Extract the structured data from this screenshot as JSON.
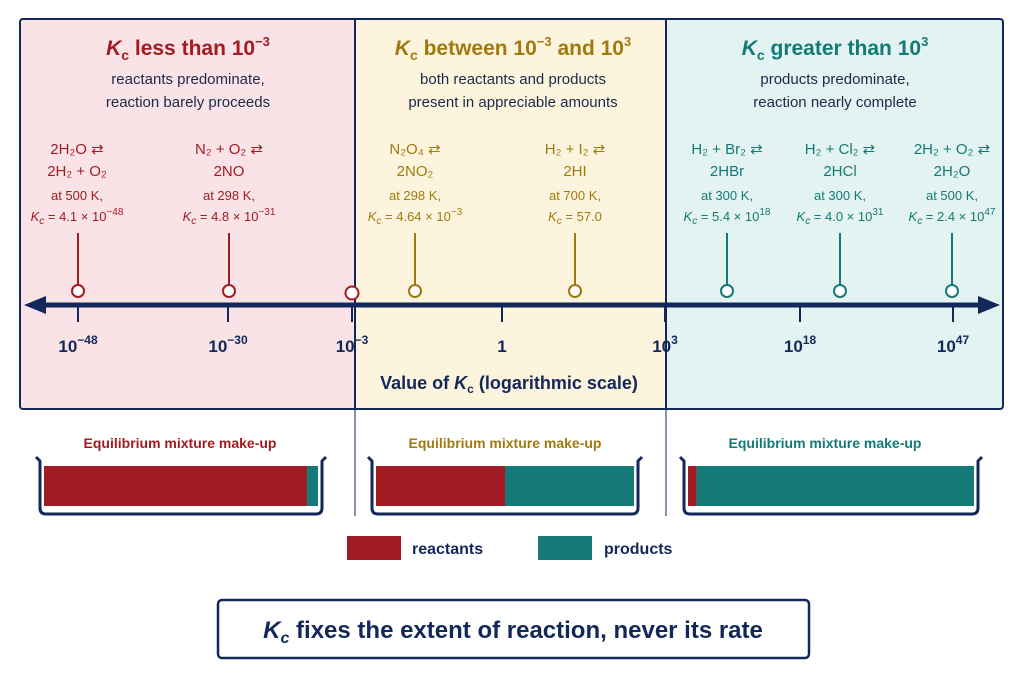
{
  "zones": [
    {
      "key": "low",
      "title_sym": "K",
      "title_sub": "c",
      "title_text": " less than 10",
      "title_sup": "−3",
      "desc": [
        "reactants predominate,",
        "reaction barely proceeds"
      ],
      "color": "#a01c22",
      "bg": "#fae3e6"
    },
    {
      "key": "mid",
      "title_sym": "K",
      "title_sub": "c",
      "title_text": " between 10",
      "title_sup": "−3",
      "title_text2": " and 10",
      "title_sup2": "3",
      "desc": [
        "both reactants and products",
        "present in appreciable amounts"
      ],
      "color": "#a07a10",
      "bg": "#fdf4dd"
    },
    {
      "key": "high",
      "title_sym": "K",
      "title_sub": "c",
      "title_text": " greater than 10",
      "title_sup": "3",
      "desc": [
        "products predominate,",
        "reaction nearly complete"
      ],
      "color": "#137a77",
      "bg": "#e2f3f1"
    }
  ],
  "examples": [
    {
      "zone": "low",
      "eq1": "2H₂O ⇄",
      "eq2": "2H₂ + O₂",
      "cond": "at 500 K,",
      "k_mant": "4.1",
      "k_exp": "−48"
    },
    {
      "zone": "low",
      "eq1": "N₂ + O₂ ⇄",
      "eq2": "2NO",
      "cond": "at 298 K,",
      "k_mant": "4.8",
      "k_exp": "−31"
    },
    {
      "zone": "mid",
      "eq1": "N₂O₄ ⇄",
      "eq2": "2NO₂",
      "cond": "at 298 K,",
      "k_mant": "4.64",
      "k_exp": "−3"
    },
    {
      "zone": "mid",
      "eq1": "H₂ + I₂ ⇄",
      "eq2": "2HI",
      "cond": "at 700 K,",
      "k_plain": "57.0"
    },
    {
      "zone": "high",
      "eq1": "H₂ + Br₂ ⇄",
      "eq2": "2HBr",
      "cond": "at 300 K,",
      "k_mant": "5.4",
      "k_exp": "18"
    },
    {
      "zone": "high",
      "eq1": "H₂ + Cl₂ ⇄",
      "eq2": "2HCl",
      "cond": "at 300 K,",
      "k_mant": "4.0",
      "k_exp": "31"
    },
    {
      "zone": "high",
      "eq1": "2H₂ + O₂ ⇄",
      "eq2": "2H₂O",
      "cond": "at 500 K,",
      "k_mant": "2.4",
      "k_exp": "47"
    }
  ],
  "axis": {
    "ticks": [
      {
        "base": "10",
        "sup": "−48"
      },
      {
        "base": "10",
        "sup": "−30"
      },
      {
        "base": "10",
        "sup": "−3"
      },
      {
        "base": "1",
        "sup": ""
      },
      {
        "base": "10",
        "sup": "3"
      },
      {
        "base": "10",
        "sup": "18"
      },
      {
        "base": "10",
        "sup": "47"
      }
    ],
    "label_pre": "Value of ",
    "label_sym": "K",
    "label_sub": "c",
    "label_post": " (logarithmic scale)"
  },
  "mixtures": {
    "label": "Equilibrium mixture make-up",
    "reactant_fraction": [
      0.96,
      0.5,
      0.03
    ],
    "colors": {
      "reactants": "#a01c22",
      "products": "#137a77"
    }
  },
  "legend": {
    "reactants": "reactants",
    "products": "products"
  },
  "footer": {
    "sym": "K",
    "sub": "c",
    "text": " fixes the extent of reaction, never its rate"
  }
}
